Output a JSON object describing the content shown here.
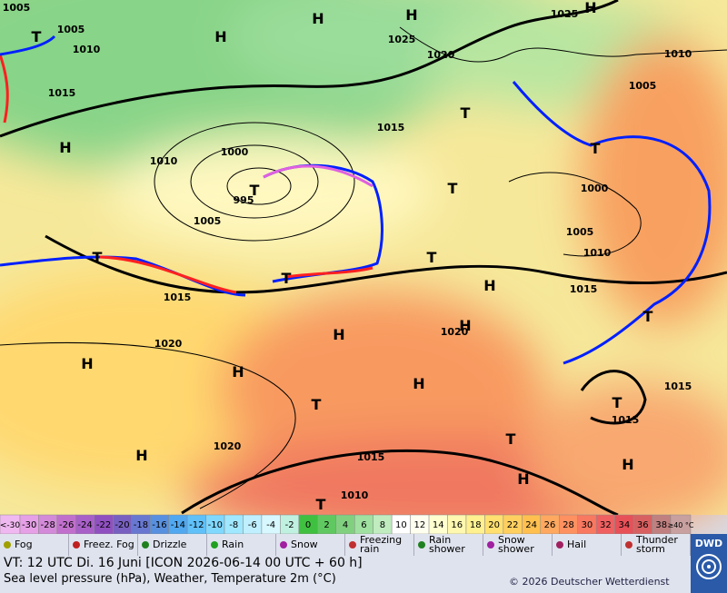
{
  "map": {
    "pressure_labels": [
      "1005",
      "1005",
      "1010",
      "1015",
      "1010",
      "1000",
      "995",
      "1005",
      "1015",
      "1020",
      "1020",
      "1015",
      "1010",
      "1015",
      "1020",
      "1025",
      "1025",
      "1010",
      "1005",
      "1000",
      "1005",
      "1010",
      "1015",
      "1020",
      "1015",
      "1015"
    ],
    "high_centers": [
      "H",
      "H",
      "H",
      "H",
      "H",
      "H",
      "H",
      "H",
      "H",
      "H",
      "H",
      "H",
      "H",
      "H"
    ],
    "low_centers": [
      "T",
      "T",
      "T",
      "T",
      "T",
      "T",
      "T",
      "T",
      "T",
      "T",
      "T",
      "T",
      "T"
    ],
    "temperature_scale": {
      "below_label": "<-30",
      "above_label": "≥40 °C",
      "values": [
        -30,
        -28,
        -26,
        -24,
        -22,
        -20,
        -18,
        -16,
        -14,
        -12,
        -10,
        -8,
        -6,
        -4,
        -2,
        0,
        2,
        4,
        6,
        8,
        10,
        12,
        14,
        16,
        18,
        20,
        22,
        24,
        26,
        28,
        30,
        32,
        34,
        36,
        38
      ],
      "colors": [
        "#e6a0e6",
        "#d38ad8",
        "#c070cc",
        "#a860c8",
        "#9050c0",
        "#7860c0",
        "#6878d0",
        "#5890e0",
        "#50a8f0",
        "#60c0f8",
        "#80d8ff",
        "#a0e8ff",
        "#c0f0ff",
        "#d8f8ff",
        "#c0f0e0",
        "#40c040",
        "#60c860",
        "#80d080",
        "#a0e0a0",
        "#c0ecc0",
        "#ffffff",
        "#fffff0",
        "#ffffd0",
        "#fff8b0",
        "#fff090",
        "#ffe070",
        "#ffd060",
        "#ffc050",
        "#ffa860",
        "#ff9060",
        "#f87860",
        "#f06060",
        "#e85058",
        "#d86060",
        "#c08080"
      ]
    },
    "weather_legend": [
      "Fog",
      "Freez. Fog",
      "Drizzle",
      "Rain",
      "Snow",
      "Freezing rain",
      "Rain shower",
      "Snow shower",
      "Hail",
      "Thunder storm"
    ],
    "footer": {
      "valid_time": "VT: 12 UTC Di.  16 Juni [ICON 2026-06-14  00 UTC + 60 h]",
      "description": "Sea level pressure (hPa), Weather, Temperature 2m (°C)",
      "copyright": "© 2026 Deutscher Wetterdienst",
      "logo": "DWD"
    }
  }
}
